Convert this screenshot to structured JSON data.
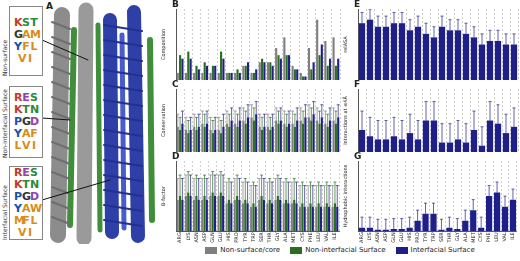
{
  "panel_a": {
    "label": "A",
    "logos": [
      {
        "title": "Non-surface",
        "letters": [
          "K",
          "S",
          "T",
          "G",
          "A",
          "M",
          "Y",
          "F",
          "L",
          "V",
          "I"
        ]
      },
      {
        "title": "Non-interfacial Surface",
        "letters": [
          "R",
          "E",
          "S",
          "K",
          "T",
          "N",
          "P",
          "G",
          "D",
          "Y",
          "A",
          "F",
          "L",
          "V",
          "I"
        ]
      },
      {
        "title": "Interfacial Surface",
        "letters": [
          "R",
          "E",
          "S",
          "K",
          "T",
          "N",
          "P",
          "G",
          "D",
          "Y",
          "A",
          "W",
          "M",
          "F",
          "L",
          "V",
          "I"
        ]
      }
    ]
  },
  "chart_data": [
    {
      "label": "B",
      "type": "bar",
      "title": "Composition",
      "legend": "bottom",
      "grid": true,
      "tick_labels": false,
      "ylim": [
        0,
        1
      ],
      "categories": [
        "ARG",
        "LYS",
        "ASN",
        "ASP",
        "GLN",
        "GLU",
        "HIS",
        "PRO",
        "TYR",
        "TRP",
        "SER",
        "THR",
        "GLY",
        "ALA",
        "MET",
        "CYS",
        "PHE",
        "LEU",
        "VAL",
        "ILE"
      ],
      "series": [
        {
          "name": "Non-surface/core",
          "color": "#7f7f7f",
          "values": [
            0.1,
            0.1,
            0.1,
            0.1,
            0.1,
            0.1,
            0.1,
            0.1,
            0.2,
            0.1,
            0.25,
            0.25,
            0.45,
            0.6,
            0.2,
            0.1,
            0.45,
            0.85,
            0.55,
            0.6
          ]
        },
        {
          "name": "Non-interfacial Surface",
          "color": "#2a6e1f",
          "values": [
            0.35,
            0.4,
            0.2,
            0.25,
            0.2,
            0.4,
            0.1,
            0.15,
            0.2,
            0.1,
            0.3,
            0.25,
            0.35,
            0.35,
            0.15,
            0.05,
            0.15,
            0.35,
            0.2,
            0.2
          ]
        },
        {
          "name": "Interfacial Surface",
          "color": "#1f1f8a",
          "values": [
            0.3,
            0.3,
            0.15,
            0.2,
            0.2,
            0.3,
            0.1,
            0.1,
            0.25,
            0.15,
            0.25,
            0.2,
            0.3,
            0.35,
            0.15,
            0.05,
            0.25,
            0.5,
            0.3,
            0.3
          ]
        }
      ]
    },
    {
      "label": "C",
      "type": "bar",
      "title": "Conservation",
      "grid": true,
      "tick_labels": false,
      "ylim": [
        0,
        1
      ],
      "categories": [
        "ARG",
        "LYS",
        "ASN",
        "ASP",
        "GLN",
        "GLU",
        "HIS",
        "PRO",
        "TYR",
        "TRP",
        "SER",
        "THR",
        "GLY",
        "ALA",
        "MET",
        "CYS",
        "PHE",
        "LEU",
        "VAL",
        "ILE"
      ],
      "series": [
        {
          "name": "Non-surface/core",
          "color": "#7f7f7f",
          "values": [
            0.4,
            0.35,
            0.4,
            0.45,
            0.35,
            0.35,
            0.45,
            0.45,
            0.5,
            0.55,
            0.4,
            0.4,
            0.5,
            0.45,
            0.45,
            0.5,
            0.55,
            0.5,
            0.45,
            0.5
          ],
          "errors": [
            0.2,
            0.2,
            0.2,
            0.2,
            0.2,
            0.2,
            0.2,
            0.2,
            0.2,
            0.2,
            0.2,
            0.2,
            0.2,
            0.2,
            0.2,
            0.2,
            0.2,
            0.2,
            0.2,
            0.2
          ]
        },
        {
          "name": "Non-interfacial Surface",
          "color": "#2a6e1f",
          "values": [
            0.35,
            0.3,
            0.35,
            0.4,
            0.3,
            0.3,
            0.4,
            0.4,
            0.45,
            0.5,
            0.35,
            0.35,
            0.45,
            0.4,
            0.4,
            0.45,
            0.5,
            0.45,
            0.4,
            0.45
          ],
          "errors": [
            0.2,
            0.2,
            0.2,
            0.2,
            0.2,
            0.2,
            0.2,
            0.2,
            0.2,
            0.2,
            0.2,
            0.2,
            0.2,
            0.2,
            0.2,
            0.2,
            0.2,
            0.2,
            0.2,
            0.2
          ]
        },
        {
          "name": "Interfacial Surface",
          "color": "#1f1f8a",
          "values": [
            0.45,
            0.35,
            0.4,
            0.45,
            0.35,
            0.4,
            0.5,
            0.5,
            0.55,
            0.6,
            0.4,
            0.4,
            0.5,
            0.45,
            0.5,
            0.55,
            0.6,
            0.55,
            0.5,
            0.55
          ],
          "errors": [
            0.2,
            0.2,
            0.2,
            0.2,
            0.2,
            0.2,
            0.2,
            0.2,
            0.2,
            0.2,
            0.2,
            0.2,
            0.2,
            0.2,
            0.2,
            0.2,
            0.2,
            0.2,
            0.2,
            0.2
          ]
        }
      ]
    },
    {
      "label": "D",
      "type": "bar",
      "title": "B-factor",
      "grid": true,
      "tick_labels": "x",
      "ylim": [
        0,
        1
      ],
      "categories": [
        "ARG",
        "LYS",
        "ASN",
        "ASP",
        "GLN",
        "GLU",
        "HIS",
        "PRO",
        "TYR",
        "TRP",
        "SER",
        "THR",
        "GLY",
        "ALA",
        "MET",
        "CYS",
        "PHE",
        "LEU",
        "VAL",
        "ILE"
      ],
      "series": [
        {
          "name": "Non-surface/core",
          "color": "#7f7f7f",
          "values": [
            0.45,
            0.5,
            0.45,
            0.45,
            0.5,
            0.5,
            0.4,
            0.45,
            0.4,
            0.35,
            0.45,
            0.4,
            0.45,
            0.4,
            0.4,
            0.35,
            0.35,
            0.35,
            0.35,
            0.35
          ],
          "errors": [
            0.3,
            0.3,
            0.3,
            0.3,
            0.3,
            0.3,
            0.3,
            0.3,
            0.3,
            0.3,
            0.3,
            0.3,
            0.3,
            0.3,
            0.3,
            0.3,
            0.3,
            0.3,
            0.3,
            0.3
          ]
        },
        {
          "name": "Non-interfacial Surface",
          "color": "#2a6e1f",
          "values": [
            0.5,
            0.55,
            0.5,
            0.5,
            0.55,
            0.55,
            0.45,
            0.5,
            0.45,
            0.4,
            0.5,
            0.45,
            0.5,
            0.45,
            0.45,
            0.4,
            0.4,
            0.4,
            0.4,
            0.4
          ],
          "errors": [
            0.3,
            0.3,
            0.3,
            0.3,
            0.3,
            0.3,
            0.3,
            0.3,
            0.3,
            0.3,
            0.3,
            0.3,
            0.3,
            0.3,
            0.3,
            0.3,
            0.3,
            0.3,
            0.3,
            0.3
          ]
        },
        {
          "name": "Interfacial Surface",
          "color": "#1f1f8a",
          "values": [
            0.45,
            0.5,
            0.45,
            0.45,
            0.5,
            0.5,
            0.4,
            0.45,
            0.4,
            0.35,
            0.45,
            0.4,
            0.45,
            0.4,
            0.4,
            0.35,
            0.35,
            0.35,
            0.35,
            0.35
          ],
          "errors": [
            0.3,
            0.3,
            0.3,
            0.3,
            0.3,
            0.3,
            0.3,
            0.3,
            0.3,
            0.3,
            0.3,
            0.3,
            0.3,
            0.3,
            0.3,
            0.3,
            0.3,
            0.3,
            0.3,
            0.3
          ]
        }
      ]
    },
    {
      "label": "E",
      "type": "bar",
      "title": "relASA",
      "grid": true,
      "tick_labels": false,
      "ylim": [
        0,
        1
      ],
      "categories": [
        "ARG",
        "LYS",
        "ASN",
        "ASP",
        "GLN",
        "GLU",
        "HIS",
        "PRO",
        "TYR",
        "TRP",
        "SER",
        "THR",
        "GLY",
        "ALA",
        "MET",
        "CYS",
        "PHE",
        "LEU",
        "VAL",
        "ILE"
      ],
      "series": [
        {
          "name": "Interfacial Surface",
          "color": "#1f1f8a",
          "values": [
            0.8,
            0.85,
            0.75,
            0.75,
            0.8,
            0.8,
            0.7,
            0.75,
            0.65,
            0.6,
            0.75,
            0.7,
            0.7,
            0.65,
            0.6,
            0.5,
            0.55,
            0.55,
            0.5,
            0.5
          ],
          "errors": [
            0.15,
            0.15,
            0.15,
            0.15,
            0.15,
            0.15,
            0.15,
            0.15,
            0.15,
            0.15,
            0.15,
            0.15,
            0.15,
            0.15,
            0.15,
            0.15,
            0.15,
            0.15,
            0.15,
            0.15
          ]
        }
      ]
    },
    {
      "label": "F",
      "type": "bar",
      "title": "Interactions at ≤4Å",
      "grid": true,
      "tick_labels": false,
      "ylim": [
        0,
        1
      ],
      "categories": [
        "ARG",
        "LYS",
        "ASN",
        "ASP",
        "GLN",
        "GLU",
        "HIS",
        "PRO",
        "TYR",
        "TRP",
        "SER",
        "THR",
        "GLY",
        "ALA",
        "MET",
        "CYS",
        "PHE",
        "LEU",
        "VAL",
        "ILE"
      ],
      "series": [
        {
          "name": "Interfacial Surface",
          "color": "#1f1f8a",
          "values": [
            0.35,
            0.25,
            0.2,
            0.2,
            0.25,
            0.2,
            0.3,
            0.2,
            0.5,
            0.5,
            0.15,
            0.15,
            0.2,
            0.15,
            0.35,
            0.1,
            0.5,
            0.45,
            0.3,
            0.4
          ],
          "errors": [
            0.3,
            0.3,
            0.3,
            0.3,
            0.3,
            0.3,
            0.3,
            0.3,
            0.3,
            0.3,
            0.3,
            0.3,
            0.3,
            0.3,
            0.3,
            0.3,
            0.3,
            0.3,
            0.3,
            0.3
          ]
        }
      ]
    },
    {
      "label": "G",
      "type": "bar",
      "title": "Hydrophobic interactions",
      "grid": true,
      "tick_labels": "x",
      "ylim": [
        0,
        1
      ],
      "categories": [
        "ARG",
        "LYS",
        "ASN",
        "ASP",
        "GLN",
        "GLU",
        "HIS",
        "PRO",
        "TYR",
        "TRP",
        "SER",
        "THR",
        "GLY",
        "ALA",
        "MET",
        "CYS",
        "PHE",
        "LEU",
        "VAL",
        "ILE"
      ],
      "series": [
        {
          "name": "Interfacial Surface",
          "color": "#1f1f8a",
          "values": [
            0.05,
            0.05,
            0.02,
            0.02,
            0.03,
            0.03,
            0.05,
            0.15,
            0.25,
            0.25,
            0.02,
            0.05,
            0.03,
            0.15,
            0.3,
            0.05,
            0.5,
            0.55,
            0.35,
            0.45
          ],
          "errors": [
            0.15,
            0.15,
            0.15,
            0.15,
            0.15,
            0.15,
            0.15,
            0.15,
            0.15,
            0.15,
            0.15,
            0.15,
            0.15,
            0.15,
            0.15,
            0.15,
            0.15,
            0.15,
            0.15,
            0.15
          ]
        }
      ]
    }
  ]
}
